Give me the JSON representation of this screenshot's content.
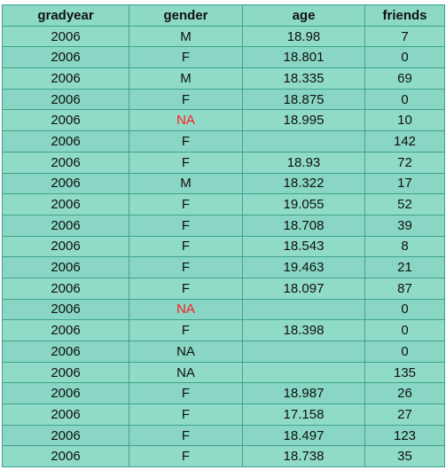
{
  "headers": [
    "gradyear",
    "gender",
    "age",
    "friends"
  ],
  "rows": [
    {
      "gradyear": "2006",
      "gender": "M",
      "age": "18.98",
      "friends": "7"
    },
    {
      "gradyear": "2006",
      "gender": "F",
      "age": "18.801",
      "friends": "0"
    },
    {
      "gradyear": "2006",
      "gender": "M",
      "age": "18.335",
      "friends": "69"
    },
    {
      "gradyear": "2006",
      "gender": "F",
      "age": "18.875",
      "friends": "0"
    },
    {
      "gradyear": "2006",
      "gender": "NA",
      "age": "18.995",
      "friends": "10",
      "gender_color": "#ff1a1a"
    },
    {
      "gradyear": "2006",
      "gender": "F",
      "age": "",
      "friends": "142"
    },
    {
      "gradyear": "2006",
      "gender": "F",
      "age": "18.93",
      "friends": "72"
    },
    {
      "gradyear": "2006",
      "gender": "M",
      "age": "18.322",
      "friends": "17"
    },
    {
      "gradyear": "2006",
      "gender": "F",
      "age": "19.055",
      "friends": "52"
    },
    {
      "gradyear": "2006",
      "gender": "F",
      "age": "18.708",
      "friends": "39"
    },
    {
      "gradyear": "2006",
      "gender": "F",
      "age": "18.543",
      "friends": "8"
    },
    {
      "gradyear": "2006",
      "gender": "F",
      "age": "19.463",
      "friends": "21"
    },
    {
      "gradyear": "2006",
      "gender": "F",
      "age": "18.097",
      "friends": "87"
    },
    {
      "gradyear": "2006",
      "gender": "NA",
      "age": "",
      "friends": "0",
      "gender_color": "#ff1a1a"
    },
    {
      "gradyear": "2006",
      "gender": "F",
      "age": "18.398",
      "friends": "0"
    },
    {
      "gradyear": "2006",
      "gender": "NA",
      "age": "",
      "friends": "0"
    },
    {
      "gradyear": "2006",
      "gender": "NA",
      "age": "",
      "friends": "135"
    },
    {
      "gradyear": "2006",
      "gender": "F",
      "age": "18.987",
      "friends": "26"
    },
    {
      "gradyear": "2006",
      "gender": "F",
      "age": "17.158",
      "friends": "27"
    },
    {
      "gradyear": "2006",
      "gender": "F",
      "age": "18.497",
      "friends": "123"
    },
    {
      "gradyear": "2006",
      "gender": "F",
      "age": "18.738",
      "friends": "35"
    }
  ],
  "colors": {
    "cell_fill": "#8cd9c6",
    "grid_line": "#3fa38a",
    "na_highlight": "#ff1a1a"
  }
}
